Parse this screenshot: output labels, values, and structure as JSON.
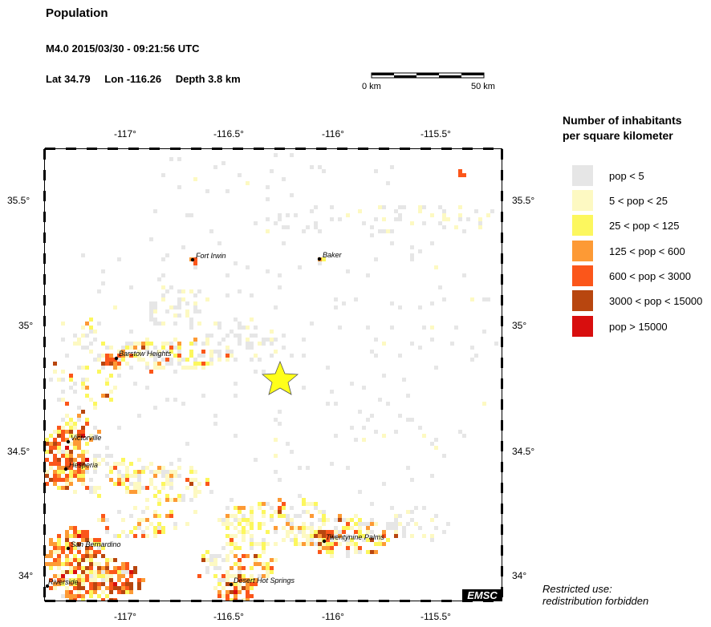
{
  "header": {
    "title": "Population",
    "event": "M4.0  2015/03/30 - 09:21:56 UTC",
    "lat": "Lat 34.79",
    "lon": "Lon -116.26",
    "depth": "Depth  3.8 km"
  },
  "scalebar": {
    "left_label": "0 km",
    "right_label": "50 km"
  },
  "axes": {
    "lon_ticks": [
      "-117°",
      "-116.5°",
      "-116°",
      "-115.5°"
    ],
    "lat_ticks": [
      "35.5°",
      "35°",
      "34.5°",
      "34°"
    ]
  },
  "places": [
    {
      "name": "Fort Irwin"
    },
    {
      "name": "Baker"
    },
    {
      "name": "Barstow Heights"
    },
    {
      "name": "Victorville"
    },
    {
      "name": "Hesperia"
    },
    {
      "name": "San Bernardino"
    },
    {
      "name": "Riverside"
    },
    {
      "name": "Desert Hot Springs"
    },
    {
      "name": "Twentynine Palms"
    }
  ],
  "epicenter": {
    "symbol": "star-icon",
    "color": "#ffff1a"
  },
  "legend": {
    "title_line1": "Number of inhabitants",
    "title_line2": "per square kilometer",
    "items": [
      {
        "label": "pop < 5",
        "color": "#e6e6e6"
      },
      {
        "label": "5 < pop < 25",
        "color": "#fdf9c2"
      },
      {
        "label": "25 < pop < 125",
        "color": "#fcf75e"
      },
      {
        "label": "125 < pop < 600",
        "color": "#fd9a35"
      },
      {
        "label": "600 < pop < 3000",
        "color": "#fb561a"
      },
      {
        "label": "3000 < pop < 15000",
        "color": "#b8460f"
      },
      {
        "label": "pop > 15000",
        "color": "#d80e0e"
      }
    ]
  },
  "watermark": "EMSC",
  "notice": {
    "line1": "Restricted use:",
    "line2": "redistribution forbidden"
  }
}
